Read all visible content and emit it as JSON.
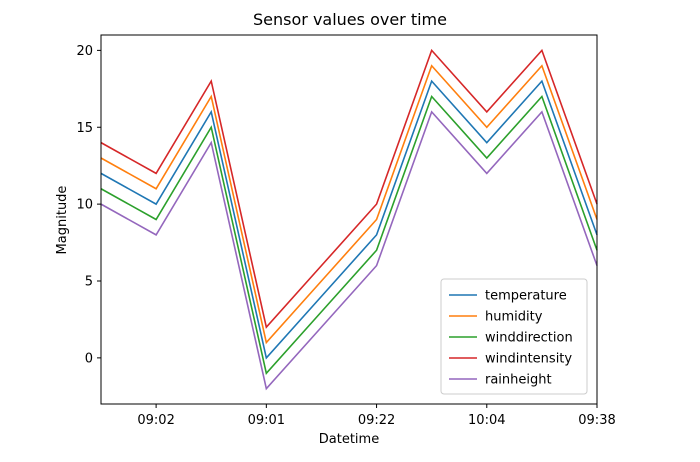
{
  "chart_data": {
    "type": "line",
    "title": "Sensor values over time",
    "xlabel": "Datetime",
    "ylabel": "Magnitude",
    "x": [
      0,
      1,
      2,
      3,
      4,
      5,
      6,
      7,
      8,
      9
    ],
    "xticks": [
      {
        "pos": 1,
        "label": "09:02"
      },
      {
        "pos": 3,
        "label": "09:01"
      },
      {
        "pos": 5,
        "label": "09:22"
      },
      {
        "pos": 7,
        "label": "10:04"
      },
      {
        "pos": 9,
        "label": "09:38"
      }
    ],
    "xlim": [
      0,
      9
    ],
    "ylim": [
      -3,
      21
    ],
    "yticks": [
      0,
      5,
      10,
      15,
      20
    ],
    "grid": false,
    "legend_position": "lower-right",
    "series": [
      {
        "name": "temperature",
        "color": "#1f77b4",
        "values": [
          12,
          10,
          16,
          0,
          4,
          8,
          18,
          14,
          18,
          8
        ]
      },
      {
        "name": "humidity",
        "color": "#ff7f0e",
        "values": [
          13,
          11,
          17,
          1,
          5,
          9,
          19,
          15,
          19,
          9
        ]
      },
      {
        "name": "winddirection",
        "color": "#2ca02c",
        "values": [
          11,
          9,
          15,
          -1,
          3,
          7,
          17,
          13,
          17,
          7
        ]
      },
      {
        "name": "windintensity",
        "color": "#d62728",
        "values": [
          14,
          12,
          18,
          2,
          6,
          10,
          20,
          16,
          20,
          10
        ]
      },
      {
        "name": "rainheight",
        "color": "#9467bd",
        "values": [
          10,
          8,
          14,
          -2,
          2,
          6,
          16,
          12,
          16,
          6
        ]
      }
    ]
  }
}
